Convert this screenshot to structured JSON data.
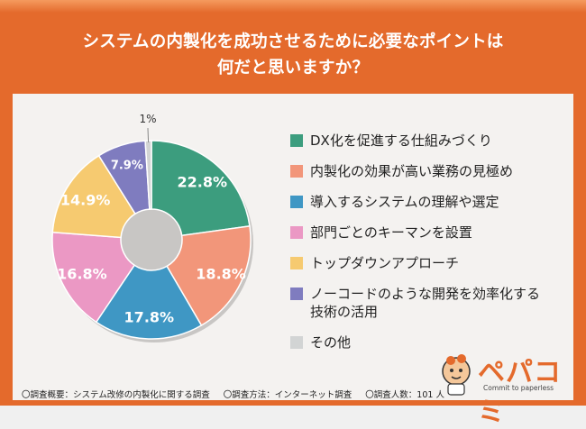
{
  "title": {
    "line1": "システムの内製化を成功させるために必要なポイントは",
    "line2": "何だと思いますか？"
  },
  "chart_data": {
    "type": "pie",
    "style": "donut",
    "categories": [
      "DX化を促進する仕組みづくり",
      "内製化の効果が高い業務の見極め",
      "導入するシステムの理解や選定",
      "部門ごとのキーマンを設置",
      "トップダウンアプローチ",
      "ノーコードのような開発を効率化する技術の活用",
      "その他"
    ],
    "values": [
      22.8,
      18.8,
      17.8,
      16.8,
      14.9,
      7.9,
      1.0
    ],
    "labels": [
      "22.8%",
      "18.8%",
      "17.8%",
      "16.8%",
      "14.9%",
      "7.9%",
      "1%"
    ],
    "colors": [
      "#3c9d7e",
      "#f2967a",
      "#3f97c4",
      "#eb98c4",
      "#f6ca70",
      "#7f7cbf",
      "#d2d4d4"
    ],
    "legend_placement": "right"
  },
  "legend": [
    {
      "lines": [
        "DX化を促進する仕組みづくり"
      ]
    },
    {
      "lines": [
        "内製化の効果が高い業務の見極め"
      ]
    },
    {
      "lines": [
        "導入するシステムの理解や選定"
      ]
    },
    {
      "lines": [
        "部門ごとのキーマンを設置"
      ]
    },
    {
      "lines": [
        "トップダウンアプローチ"
      ]
    },
    {
      "lines": [
        "ノーコードのような開発を効率化する",
        "技術の活用"
      ]
    },
    {
      "lines": [
        "その他"
      ]
    }
  ],
  "footer": {
    "overview": "〇調査概要：システム改修の内製化に関する調査",
    "method": "〇調査方法：インターネット調査",
    "respondents": "〇調査人数：101 人"
  },
  "logo": {
    "name": "ペパコミ",
    "tagline": "Commit to paperless"
  }
}
